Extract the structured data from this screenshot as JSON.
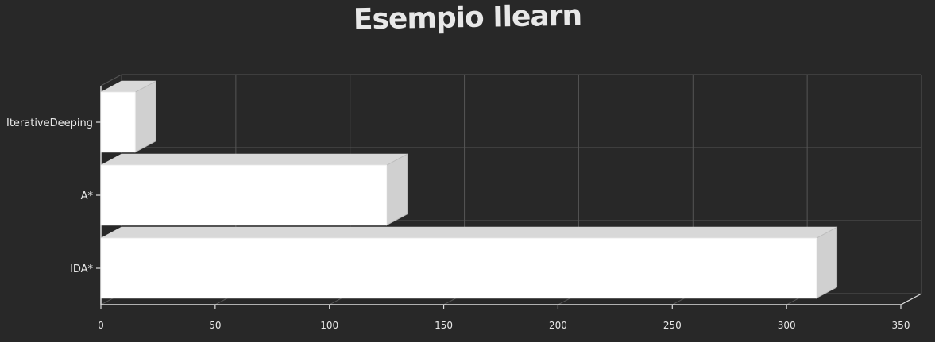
{
  "chart_data": {
    "type": "bar",
    "orientation": "horizontal",
    "style": "3d-sketch",
    "title": "Esempio Ilearn",
    "categories": [
      "IterativeDeeping",
      "A*",
      "IDA*"
    ],
    "series": [
      {
        "values": [
          15,
          125,
          313
        ]
      }
    ],
    "xlim": [
      0,
      350
    ],
    "xticks": [
      0,
      50,
      100,
      150,
      200,
      250,
      300,
      350
    ],
    "xlabel": "",
    "ylabel": "",
    "grid": true,
    "legend": "none"
  },
  "colors": {
    "background": "#282828",
    "bar_front": "#ffffff",
    "bar_side": "#d0d0d0",
    "bar_top": "#d8d8d8",
    "grid": "#555555",
    "axis": "#dddddd",
    "text": "#e8e8e8"
  }
}
